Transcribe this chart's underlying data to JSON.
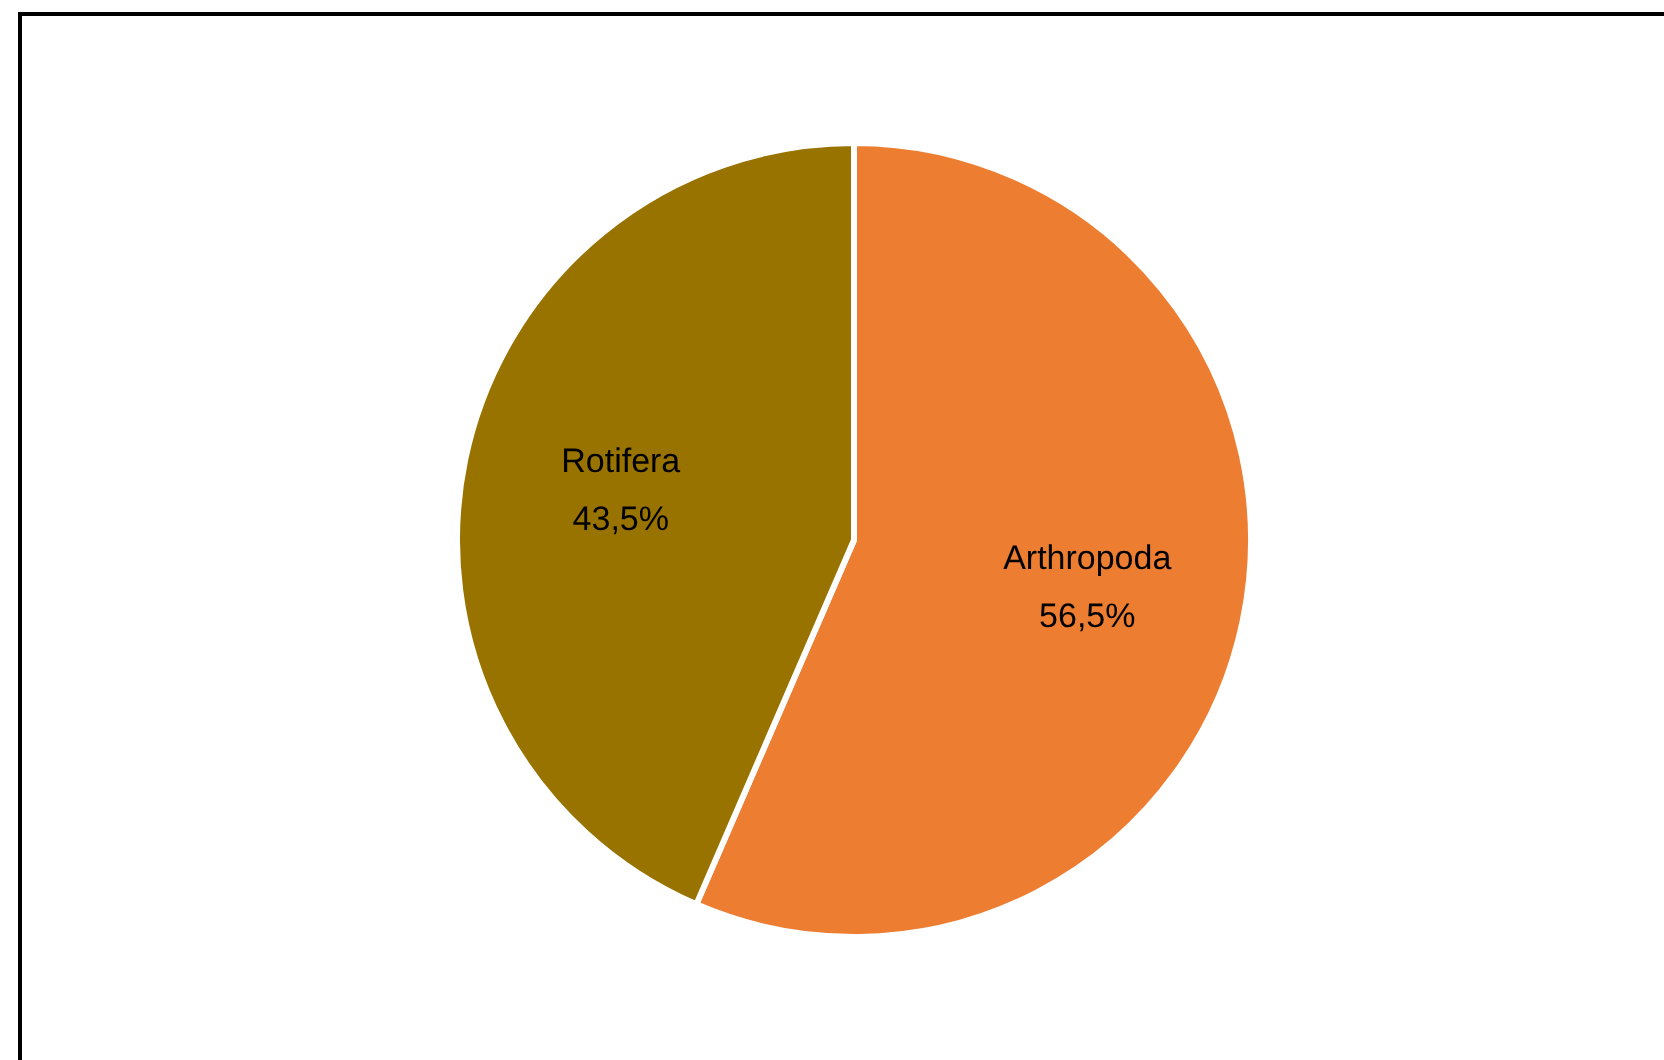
{
  "chart_data": {
    "type": "pie",
    "categories": [
      "Arthropoda",
      "Rotifera"
    ],
    "values": [
      56.5,
      43.5
    ],
    "colors": [
      "#ed7d31",
      "#997300"
    ],
    "value_labels": [
      "56,5%",
      "43,5%"
    ]
  }
}
